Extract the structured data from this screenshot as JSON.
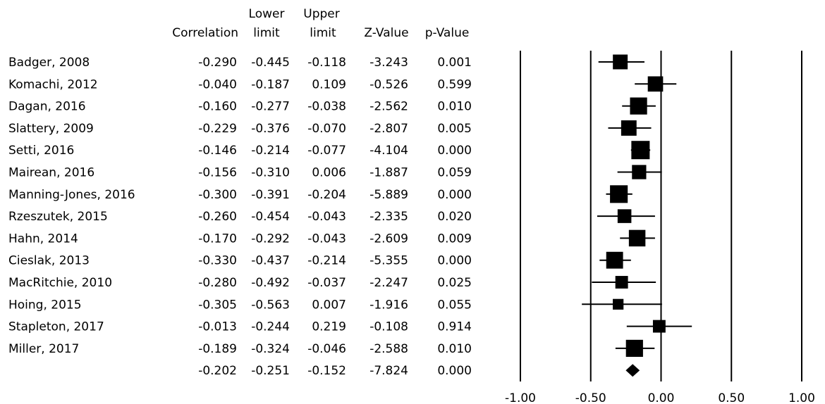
{
  "chart_data": {
    "type": "forest",
    "columns": {
      "correlation": "Correlation",
      "lower_l1": "Lower",
      "lower_l2": "limit",
      "upper_l1": "Upper",
      "upper_l2": "limit",
      "z": "Z-Value",
      "p": "p-Value"
    },
    "rows": [
      {
        "study": "Badger, 2008",
        "correlation": "-0.290",
        "lower": "-0.445",
        "upper": "-0.118",
        "z": "-3.243",
        "p": "0.001",
        "est": -0.29,
        "lo": -0.445,
        "hi": -0.118,
        "weight": 0.72
      },
      {
        "study": "Komachi, 2012",
        "correlation": "-0.040",
        "lower": "-0.187",
        "upper": "0.109",
        "z": "-0.526",
        "p": "0.599",
        "est": -0.04,
        "lo": -0.187,
        "hi": 0.109,
        "weight": 0.76
      },
      {
        "study": "Dagan, 2016",
        "correlation": "-0.160",
        "lower": "-0.277",
        "upper": "-0.038",
        "z": "-2.562",
        "p": "0.010",
        "est": -0.16,
        "lo": -0.277,
        "hi": -0.038,
        "weight": 0.9
      },
      {
        "study": "Slattery, 2009",
        "correlation": "-0.229",
        "lower": "-0.376",
        "upper": "-0.070",
        "z": "-2.807",
        "p": "0.005",
        "est": -0.229,
        "lo": -0.376,
        "hi": -0.07,
        "weight": 0.77
      },
      {
        "study": "Setti, 2016",
        "correlation": "-0.146",
        "lower": "-0.214",
        "upper": "-0.077",
        "z": "-4.104",
        "p": "0.000",
        "est": -0.146,
        "lo": -0.214,
        "hi": -0.077,
        "weight": 1.0
      },
      {
        "study": "Mairean, 2016",
        "correlation": "-0.156",
        "lower": "-0.310",
        "upper": "0.006",
        "z": "-1.887",
        "p": "0.059",
        "est": -0.156,
        "lo": -0.31,
        "hi": 0.006,
        "weight": 0.68
      },
      {
        "study": "Manning-Jones, 2016",
        "correlation": "-0.300",
        "lower": "-0.391",
        "upper": "-0.204",
        "z": "-5.889",
        "p": "0.000",
        "est": -0.3,
        "lo": -0.391,
        "hi": -0.204,
        "weight": 0.95
      },
      {
        "study": "Rzeszutek, 2015",
        "correlation": "-0.260",
        "lower": "-0.454",
        "upper": "-0.043",
        "z": "-2.335",
        "p": "0.020",
        "est": -0.26,
        "lo": -0.454,
        "hi": -0.043,
        "weight": 0.64
      },
      {
        "study": "Hahn, 2014",
        "correlation": "-0.170",
        "lower": "-0.292",
        "upper": "-0.043",
        "z": "-2.609",
        "p": "0.009",
        "est": -0.17,
        "lo": -0.292,
        "hi": -0.043,
        "weight": 0.86
      },
      {
        "study": "Cieslak, 2013",
        "correlation": "-0.330",
        "lower": "-0.437",
        "upper": "-0.214",
        "z": "-5.355",
        "p": "0.000",
        "est": -0.33,
        "lo": -0.437,
        "hi": -0.214,
        "weight": 0.88
      },
      {
        "study": "MacRitchie, 2010",
        "correlation": "-0.280",
        "lower": "-0.492",
        "upper": "-0.037",
        "z": "-2.247",
        "p": "0.025",
        "est": -0.28,
        "lo": -0.492,
        "hi": -0.037,
        "weight": 0.55
      },
      {
        "study": "Hoing, 2015",
        "correlation": "-0.305",
        "lower": "-0.563",
        "upper": "0.007",
        "z": "-1.916",
        "p": "0.055",
        "est": -0.305,
        "lo": -0.563,
        "hi": 0.007,
        "weight": 0.4
      },
      {
        "study": "Stapleton, 2017",
        "correlation": "-0.013",
        "lower": "-0.244",
        "upper": "0.219",
        "z": "-0.108",
        "p": "0.914",
        "est": -0.013,
        "lo": -0.244,
        "hi": 0.219,
        "weight": 0.55
      },
      {
        "study": "Miller, 2017",
        "correlation": "-0.189",
        "lower": "-0.324",
        "upper": "-0.046",
        "z": "-2.588",
        "p": "0.010",
        "est": -0.189,
        "lo": -0.324,
        "hi": -0.046,
        "weight": 0.9
      }
    ],
    "summary": {
      "study": "",
      "correlation": "-0.202",
      "lower": "-0.251",
      "upper": "-0.152",
      "z": "-7.824",
      "p": "0.000",
      "est": -0.202,
      "lo": -0.251,
      "hi": -0.152
    },
    "x_axis": {
      "range": [
        -1.0,
        1.0
      ],
      "ticks": [
        -1.0,
        -0.5,
        0.0,
        0.5,
        1.0
      ],
      "tick_labels": [
        "-1.00",
        "-0.50",
        "0.00",
        "0.50",
        "1.00"
      ],
      "reference_lines": [
        -1.0,
        -0.5,
        0.0,
        0.5,
        1.0
      ]
    },
    "marker_color": "#000000",
    "line_color": "#000000"
  }
}
